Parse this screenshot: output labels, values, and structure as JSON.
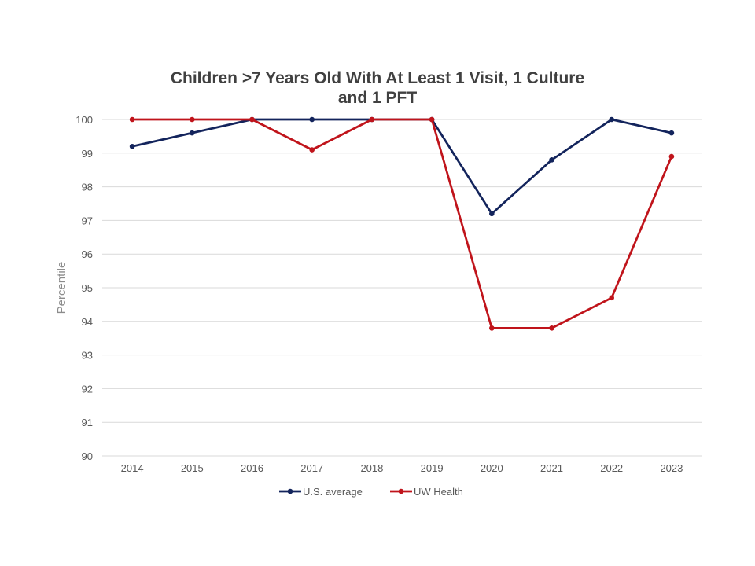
{
  "chart_data": {
    "type": "line",
    "title": [
      "Children >7 Years Old With At Least 1 Visit, 1 Culture",
      "and 1 PFT"
    ],
    "xlabel": "",
    "ylabel": "Percentile",
    "ylim": [
      90,
      100
    ],
    "yticks": [
      "90",
      "91",
      "92",
      "93",
      "94",
      "95",
      "96",
      "97",
      "98",
      "99",
      "100"
    ],
    "categories": [
      "2014",
      "2015",
      "2016",
      "2017",
      "2018",
      "2019",
      "2020",
      "2021",
      "2022",
      "2023"
    ],
    "grid": true,
    "legend_position": "bottom",
    "series": [
      {
        "name": "U.S. average",
        "color": "#13245c",
        "values": [
          99.2,
          99.6,
          100,
          100,
          100,
          100,
          97.2,
          98.8,
          100,
          99.6
        ]
      },
      {
        "name": "UW Health",
        "color": "#c0141b",
        "values": [
          100,
          100,
          100,
          99.1,
          100,
          100,
          93.8,
          93.8,
          94.7,
          98.9
        ]
      }
    ]
  }
}
